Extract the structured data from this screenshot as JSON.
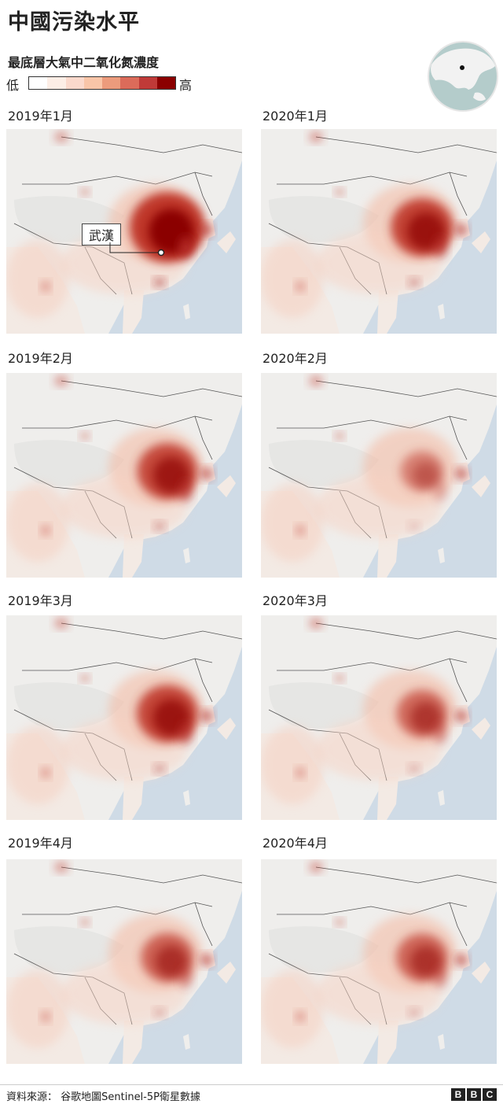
{
  "title": "中國污染水平",
  "legend": {
    "title": "最底層大氣中二氧化氮濃度",
    "low_label": "低",
    "high_label": "高",
    "colors": [
      "#ffffff",
      "#fdeee6",
      "#fbd9cc",
      "#f9c5a8",
      "#ec9b7c",
      "#dc6b5a",
      "#c03a38",
      "#8b0000"
    ]
  },
  "panels": [
    {
      "label": "2019年1月",
      "level": 1.0
    },
    {
      "label": "2020年1月",
      "level": 0.72
    },
    {
      "label": "2019年2月",
      "level": 0.68
    },
    {
      "label": "2020年2月",
      "level": 0.32
    },
    {
      "label": "2019年3月",
      "level": 0.7
    },
    {
      "label": "2020年3月",
      "level": 0.48
    },
    {
      "label": "2019年4月",
      "level": 0.52
    },
    {
      "label": "2020年4月",
      "level": 0.5
    }
  ],
  "annotation": {
    "city": "武漢"
  },
  "footer": {
    "source": "資料來源： 谷歌地圖Sentinel-5P衛星數據",
    "logo": [
      "B",
      "B",
      "C"
    ]
  }
}
